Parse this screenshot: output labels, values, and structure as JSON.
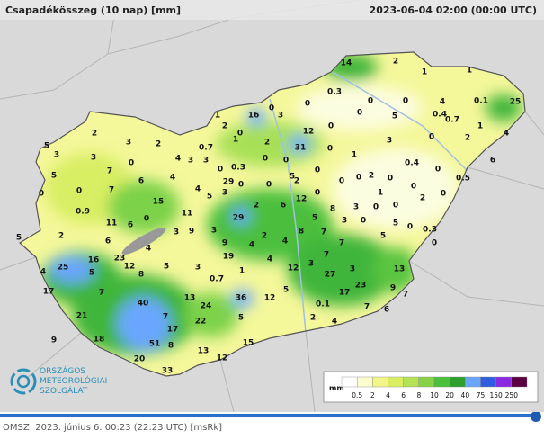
{
  "header": {
    "title": "Csapadékösszeg (10 nap) [mm]",
    "timestamp": "2023-06-04 02:00 (00:00 UTC)"
  },
  "stations": [
    14,
    2,
    1,
    1,
    0.3,
    0,
    0,
    0,
    0,
    4,
    0.1,
    25,
    0,
    0.4,
    0.7,
    1,
    4,
    1,
    16,
    3,
    12,
    0,
    5,
    3,
    0,
    2,
    2,
    0,
    0.7,
    1,
    2,
    31,
    0,
    1,
    5,
    3,
    2,
    3,
    2,
    3,
    0,
    5,
    4,
    3,
    3,
    0.3,
    0,
    0,
    0,
    5,
    0,
    0.4,
    2,
    0,
    0,
    0,
    0.5,
    6,
    0,
    7,
    6,
    4,
    29,
    0,
    0,
    2,
    0,
    1,
    0,
    0,
    0,
    0.9,
    0,
    7,
    15,
    4,
    5,
    3,
    6,
    12,
    3,
    8,
    0,
    0,
    2,
    11,
    6,
    0,
    11,
    29,
    2,
    5,
    3,
    0,
    5,
    0,
    0.3,
    0,
    2,
    5,
    6,
    3,
    9,
    3,
    9,
    2,
    4,
    8,
    7,
    5,
    4,
    23,
    16,
    12,
    4,
    25,
    5,
    5,
    3,
    19,
    4,
    4,
    7,
    7,
    3,
    13,
    0.7,
    12,
    1,
    17,
    7,
    8,
    27,
    3,
    17,
    23,
    13,
    36,
    12,
    5,
    0.1,
    9,
    7,
    40,
    24,
    21,
    7,
    5,
    2,
    4,
    7,
    6,
    22,
    17,
    18,
    9,
    15,
    13,
    12,
    51,
    8,
    20,
    33
  ],
  "legend": {
    "unit": "mm",
    "ticks": [
      0.5,
      2,
      4,
      6,
      8,
      10,
      20,
      40,
      75,
      150,
      250
    ],
    "colors": [
      "#ffffff",
      "#fbfdd0",
      "#f2f58a",
      "#dbee62",
      "#b5e254",
      "#88d24a",
      "#4cbf3c",
      "#2ea02e",
      "#6aa6ff",
      "#2f5fe0",
      "#8a2be2",
      "#5a0040"
    ]
  },
  "logo": [
    "ORSZÁGOS",
    "METEOROLÓGIAI",
    "SZOLGÁLAT"
  ],
  "footer": "OMSZ: 2023. június 6. 00:23 (22:23  UTC)  [msRk]"
}
